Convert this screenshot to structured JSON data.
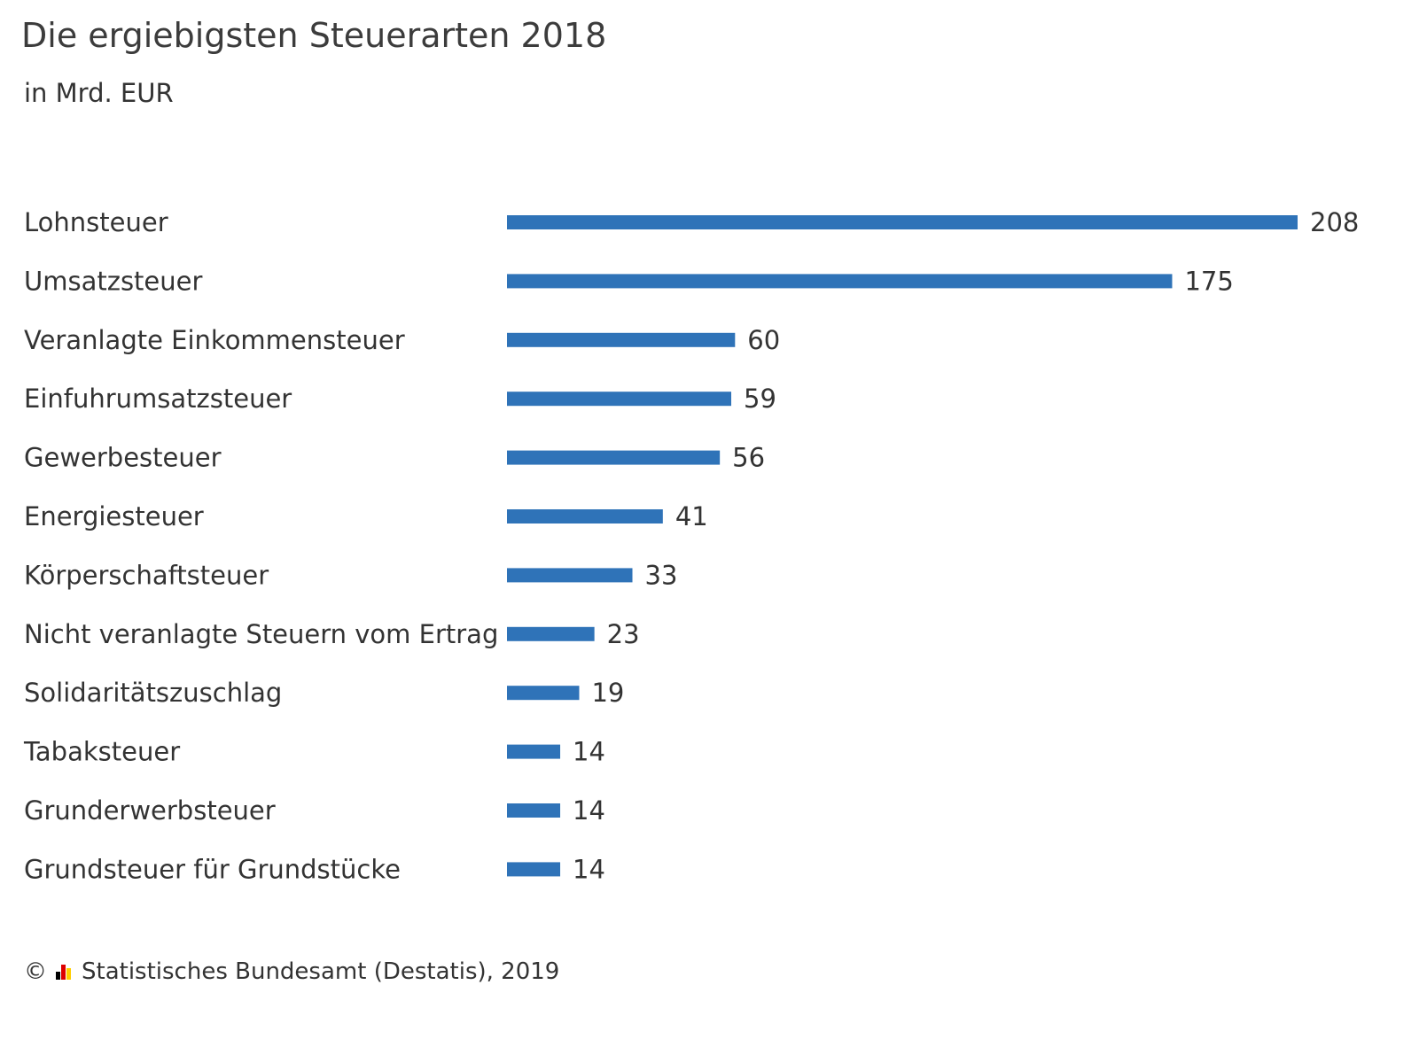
{
  "chart_data": {
    "type": "bar",
    "orientation": "horizontal",
    "title": "Die ergiebigsten Steuerarten 2018",
    "subtitle": "in Mrd. EUR",
    "categories": [
      "Lohnsteuer",
      "Umsatzsteuer",
      "Veranlagte Einkommensteuer",
      "Einfuhrumsatzsteuer",
      "Gewerbesteuer",
      "Energiesteuer",
      "Körperschaftsteuer",
      "Nicht veranlagte Steuern vom Ertrag",
      "Solidaritätszuschlag",
      "Tabaksteuer",
      "Grunderwerbsteuer",
      "Grundsteuer für Grundstücke"
    ],
    "values": [
      208,
      175,
      60,
      59,
      56,
      41,
      33,
      23,
      19,
      14,
      14,
      14
    ],
    "xlim": [
      0,
      208
    ],
    "grid": false,
    "bar_color": "#2f73b8"
  },
  "footer": {
    "copyright_symbol": "©",
    "source": "Statistisches Bundesamt (Destatis), 2019",
    "logo_icon": "destatis-logo-icon",
    "logo_colors": [
      "#000000",
      "#dd0000",
      "#ffce00"
    ]
  }
}
